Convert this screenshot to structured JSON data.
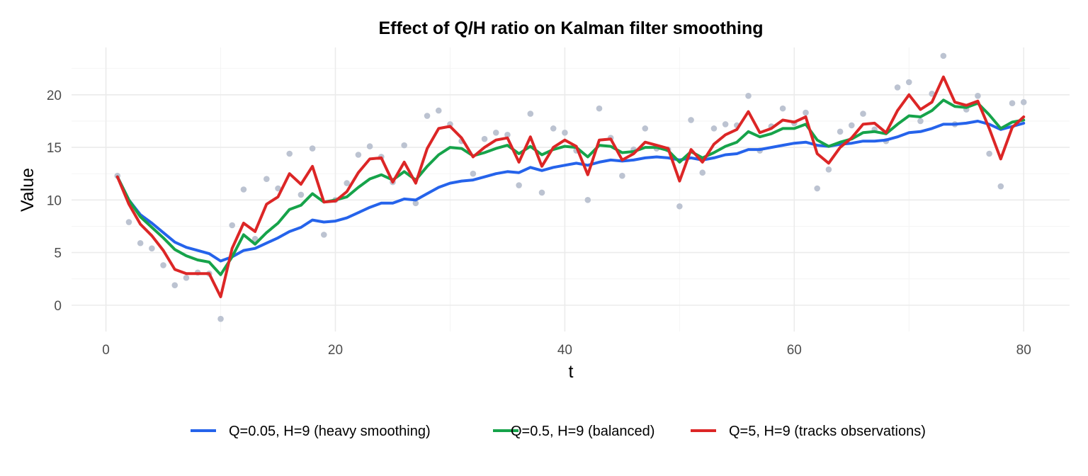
{
  "chart_data": {
    "type": "line",
    "title": "Effect of Q/H ratio on Kalman filter smoothing",
    "xlabel": "t",
    "ylabel": "Value",
    "xlim": [
      -3,
      84
    ],
    "ylim": [
      -2.5,
      24.5
    ],
    "x_ticks": [
      0,
      20,
      40,
      60,
      80
    ],
    "x_tick_labels": [
      "0",
      "20",
      "40",
      "60",
      "80"
    ],
    "y_ticks": [
      0,
      5,
      10,
      15,
      20
    ],
    "y_tick_labels": [
      "0",
      "5",
      "10",
      "15",
      "20"
    ],
    "grid": true,
    "legend_position": "bottom",
    "observations": {
      "color": "#bcc3d1",
      "x": [
        1,
        2,
        3,
        4,
        5,
        6,
        7,
        8,
        9,
        10,
        11,
        12,
        13,
        14,
        15,
        16,
        17,
        18,
        19,
        20,
        21,
        22,
        23,
        24,
        25,
        26,
        27,
        28,
        29,
        30,
        31,
        32,
        33,
        34,
        35,
        36,
        37,
        38,
        39,
        40,
        41,
        42,
        43,
        44,
        45,
        46,
        47,
        48,
        49,
        50,
        51,
        52,
        53,
        54,
        55,
        56,
        57,
        58,
        59,
        60,
        61,
        62,
        63,
        64,
        65,
        66,
        67,
        68,
        69,
        70,
        71,
        72,
        73,
        74,
        75,
        76,
        77,
        78,
        79,
        80
      ],
      "y": [
        12.3,
        7.9,
        5.9,
        5.4,
        3.8,
        1.9,
        2.6,
        3.1,
        3.0,
        -1.3,
        7.6,
        11.0,
        6.3,
        12.0,
        11.1,
        14.4,
        10.5,
        14.9,
        6.7,
        10.0,
        11.6,
        14.3,
        15.1,
        14.1,
        11.7,
        15.2,
        9.7,
        18.0,
        18.5,
        17.2,
        15.6,
        12.5,
        15.8,
        16.4,
        16.2,
        11.4,
        18.2,
        10.7,
        16.8,
        16.4,
        14.7,
        10.0,
        18.7,
        15.9,
        12.3,
        14.8,
        16.8,
        14.9,
        14.8,
        9.4,
        17.6,
        12.6,
        16.8,
        17.2,
        17.1,
        19.9,
        14.7,
        17.0,
        18.7,
        17.3,
        18.3,
        11.1,
        12.9,
        16.5,
        17.1,
        18.2,
        16.7,
        15.6,
        20.7,
        21.2,
        17.5,
        20.1,
        23.7,
        17.2,
        18.6,
        19.9,
        14.4,
        11.3,
        19.2,
        19.3
      ]
    },
    "series": [
      {
        "name": "Q=0.05, H=9 (heavy smoothing)",
        "color": "#2563eb",
        "values": [
          12.2,
          10.0,
          8.6,
          7.8,
          6.9,
          6.0,
          5.5,
          5.2,
          4.9,
          4.2,
          4.6,
          5.2,
          5.4,
          5.9,
          6.4,
          7.0,
          7.4,
          8.1,
          7.9,
          8.0,
          8.3,
          8.8,
          9.3,
          9.7,
          9.7,
          10.1,
          10.0,
          10.6,
          11.2,
          11.6,
          11.8,
          11.9,
          12.2,
          12.5,
          12.7,
          12.6,
          13.1,
          12.8,
          13.1,
          13.3,
          13.5,
          13.3,
          13.6,
          13.8,
          13.7,
          13.8,
          14.0,
          14.1,
          14.0,
          13.8,
          14.0,
          13.8,
          14.0,
          14.3,
          14.4,
          14.8,
          14.8,
          15.0,
          15.2,
          15.4,
          15.5,
          15.2,
          15.1,
          15.3,
          15.4,
          15.6,
          15.6,
          15.7,
          16.0,
          16.4,
          16.5,
          16.8,
          17.2,
          17.2,
          17.3,
          17.5,
          17.2,
          16.7,
          17.0,
          17.3
        ]
      },
      {
        "name": "Q=0.5, H=9 (balanced)",
        "color": "#16a34a",
        "values": [
          12.2,
          10.0,
          8.4,
          7.4,
          6.4,
          5.3,
          4.7,
          4.3,
          4.1,
          2.9,
          4.6,
          6.7,
          5.8,
          6.9,
          7.8,
          9.1,
          9.5,
          10.6,
          9.8,
          10.0,
          10.3,
          11.2,
          12.0,
          12.4,
          11.9,
          12.7,
          11.9,
          13.2,
          14.3,
          15.0,
          14.9,
          14.2,
          14.5,
          14.9,
          15.2,
          14.4,
          15.1,
          14.3,
          14.8,
          15.1,
          15.0,
          14.1,
          15.2,
          15.1,
          14.5,
          14.6,
          15.0,
          15.0,
          14.7,
          13.6,
          14.6,
          14.0,
          14.5,
          15.1,
          15.5,
          16.5,
          16.0,
          16.3,
          16.8,
          16.8,
          17.2,
          15.7,
          15.1,
          15.5,
          15.8,
          16.4,
          16.5,
          16.3,
          17.2,
          18.0,
          17.9,
          18.5,
          19.5,
          18.9,
          18.8,
          19.2,
          18.1,
          16.8,
          17.4,
          17.6
        ]
      },
      {
        "name": "Q=5, H=9 (tracks observations)",
        "color": "#dc2626",
        "values": [
          12.2,
          9.6,
          7.7,
          6.6,
          5.2,
          3.4,
          3.0,
          3.0,
          3.0,
          0.8,
          5.4,
          7.8,
          7.0,
          9.6,
          10.3,
          12.5,
          11.5,
          13.2,
          9.8,
          9.9,
          10.8,
          12.6,
          13.9,
          14.0,
          11.7,
          13.6,
          11.6,
          14.9,
          16.8,
          17.0,
          15.9,
          14.1,
          15.0,
          15.7,
          15.9,
          13.6,
          16.0,
          13.2,
          15.0,
          15.7,
          15.1,
          12.4,
          15.7,
          15.8,
          13.8,
          14.4,
          15.5,
          15.2,
          14.9,
          11.8,
          14.8,
          13.6,
          15.3,
          16.2,
          16.7,
          18.4,
          16.4,
          16.8,
          17.6,
          17.4,
          17.9,
          14.4,
          13.5,
          15.0,
          15.9,
          17.2,
          17.3,
          16.4,
          18.5,
          20.0,
          18.6,
          19.3,
          21.7,
          19.3,
          19.0,
          19.4,
          16.8,
          13.9,
          16.9,
          17.9
        ]
      }
    ]
  }
}
